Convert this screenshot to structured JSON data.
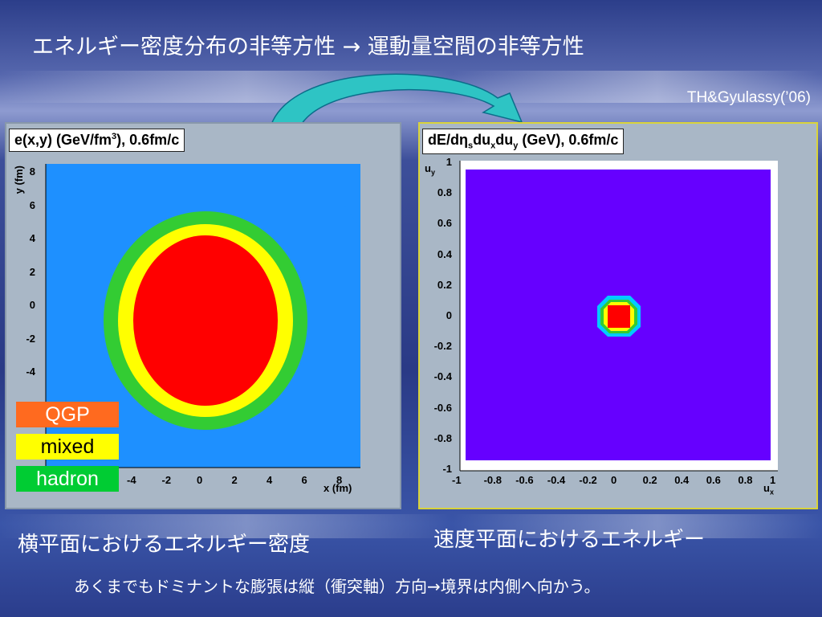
{
  "slide": {
    "title": "エネルギー密度分布の非等方性 → 運動量空間の非等方性",
    "credit": "TH&Gyulassy(’06)",
    "caption_left": "横平面におけるエネルギー密度",
    "caption_right": "速度平面におけるエネルギー",
    "note": "あくまでもドミナントな膨張は縦（衝突軸）方向→境界は内側へ向かう。",
    "colors": {
      "hadron": "#33cc33",
      "mixed": "#ffff00",
      "qgp": "#ff0000",
      "outer": "#1e90ff",
      "velocity_bg": "#6600ff",
      "arrow": "#2ec4c4"
    }
  },
  "left_plot": {
    "label_main": "e(x,y) (GeV/fm",
    "label_sup": "3",
    "label_tail": "), 0.6fm/c",
    "y_axis_name": "y (fm)",
    "x_axis_name": "x (fm)",
    "y_ticks": [
      "8",
      "6",
      "4",
      "2",
      "0",
      "-2",
      "-4"
    ],
    "x_ticks": [
      "-4",
      "-2",
      "0",
      "2",
      "4",
      "6",
      "8"
    ],
    "legend": [
      {
        "label": "QGP",
        "color": "#ff6a1f",
        "text_color": "#ffffff"
      },
      {
        "label": "mixed",
        "color": "#ffff00",
        "text_color": "#000000"
      },
      {
        "label": "hadron",
        "color": "#00cc33",
        "text_color": "#ffffff"
      }
    ]
  },
  "right_plot": {
    "label_a": "dE/d",
    "label_eta": "η",
    "label_s": "s",
    "label_b": "du",
    "label_x": "x",
    "label_c": "du",
    "label_y": "y",
    "label_d": " (GeV), 0.6fm/c",
    "y_axis_name": "u",
    "y_axis_sub": "y",
    "x_axis_name": "u",
    "x_axis_sub": "x",
    "y_ticks": [
      "1",
      "0.8",
      "0.6",
      "0.4",
      "0.2",
      "0",
      "-0.2",
      "-0.4",
      "-0.6",
      "-0.8",
      "-1"
    ],
    "x_ticks": [
      "-1",
      "-0.8",
      "-0.6",
      "-0.4",
      "-0.2",
      "0",
      "0.2",
      "0.4",
      "0.6",
      "0.8",
      "1"
    ]
  }
}
